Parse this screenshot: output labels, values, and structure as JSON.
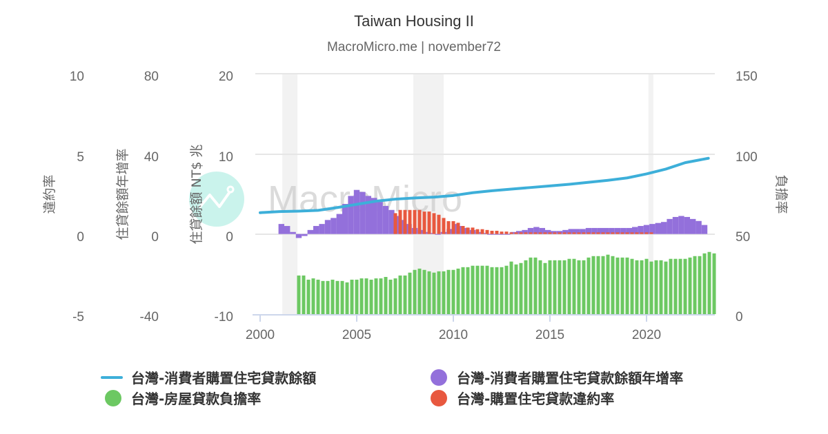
{
  "header": {
    "title": "Taiwan Housing II",
    "subtitle": "MacroMicro.me | november72"
  },
  "watermark": "MacroMicro",
  "axes": {
    "default_rate": {
      "title": "違約率",
      "ticks": [
        "10",
        "5",
        "0",
        "-5"
      ],
      "range": [
        -5,
        10
      ]
    },
    "growth": {
      "title": "住貸餘額年增率",
      "ticks": [
        "80",
        "40",
        "0",
        "-40"
      ],
      "range": [
        -40,
        80
      ]
    },
    "balance": {
      "title": "住貸餘額 NT$ 兆",
      "ticks": [
        "20",
        "10",
        "0",
        "-10"
      ],
      "range": [
        -10,
        20
      ]
    },
    "burden": {
      "title": "負擔率",
      "ticks": [
        "150",
        "100",
        "50",
        "0"
      ],
      "range": [
        0,
        150
      ]
    },
    "x": {
      "ticks": [
        "2000",
        "2005",
        "2010",
        "2015",
        "2020"
      ]
    }
  },
  "legend": [
    {
      "label": "台灣-消費者購置住宅貸款餘額",
      "color": "#3dafd9",
      "symbol": "line"
    },
    {
      "label": "台灣-消費者購置住宅貸款餘額年增率",
      "color": "#9370db",
      "symbol": "dot"
    },
    {
      "label": "台灣-房屋貸款負擔率",
      "color": "#6cc862",
      "symbol": "dot"
    },
    {
      "label": "台灣-購置住宅貸款違約率",
      "color": "#e8583f",
      "symbol": "dot"
    }
  ],
  "colors": {
    "balance": "#3dafd9",
    "growth": "#9370db",
    "burden": "#6cc862",
    "default": "#e8583f",
    "recession": "#f2f2f2",
    "grid": "#e6e6e6"
  },
  "chart_data": {
    "type": "bar",
    "title": "Taiwan Housing II",
    "subtitle": "MacroMicro.me | november72",
    "xlabel": "",
    "xlim": [
      2000,
      2023.5
    ],
    "x_ticks": [
      2000,
      2005,
      2010,
      2015,
      2020
    ],
    "grid": true,
    "legend_position": "bottom",
    "recession_bands": [
      [
        2001.15,
        2001.93
      ],
      [
        2007.93,
        2009.5
      ],
      [
        2020.1,
        2020.35
      ]
    ],
    "series": [
      {
        "name": "台灣-消費者購置住宅貸款餘額",
        "type": "line",
        "axis": "住貸餘額 NT$ 兆",
        "ylim": [
          -10,
          20
        ],
        "x": [
          2000.0,
          2001.0,
          2002.0,
          2003.0,
          2004.0,
          2005.0,
          2006.0,
          2007.0,
          2008.0,
          2009.0,
          2010.0,
          2011.0,
          2012.0,
          2013.0,
          2014.0,
          2015.0,
          2016.0,
          2017.0,
          2018.0,
          2019.0,
          2020.0,
          2021.0,
          2022.0,
          2023.2
        ],
        "values": [
          2.66,
          2.8,
          2.85,
          2.95,
          3.3,
          3.7,
          4.1,
          4.35,
          4.5,
          4.6,
          4.8,
          5.15,
          5.4,
          5.6,
          5.8,
          6.0,
          6.2,
          6.45,
          6.7,
          7.0,
          7.5,
          8.1,
          8.9,
          9.45
        ]
      },
      {
        "name": "台灣-消費者購置住宅貸款餘額年增率",
        "type": "bar",
        "axis": "住貸餘額年增率",
        "ylim": [
          -40,
          80
        ],
        "x": [
          2001.1,
          2001.4,
          2001.7,
          2002.0,
          2002.3,
          2002.6,
          2002.9,
          2003.2,
          2003.5,
          2003.8,
          2004.1,
          2004.4,
          2004.7,
          2005.0,
          2005.3,
          2005.6,
          2005.9,
          2006.2,
          2006.5,
          2006.8,
          2007.1,
          2007.4,
          2007.7,
          2008.0,
          2008.3,
          2008.6,
          2008.9,
          2009.2,
          2009.5,
          2009.8,
          2010.1,
          2010.4,
          2010.7,
          2011.0,
          2011.3,
          2011.6,
          2011.9,
          2012.2,
          2012.5,
          2012.8,
          2013.1,
          2013.4,
          2013.7,
          2014.0,
          2014.3,
          2014.6,
          2014.9,
          2015.2,
          2015.5,
          2015.8,
          2016.1,
          2016.4,
          2016.7,
          2017.0,
          2017.3,
          2017.6,
          2017.9,
          2018.2,
          2018.5,
          2018.8,
          2019.1,
          2019.4,
          2019.7,
          2020.0,
          2020.3,
          2020.6,
          2020.9,
          2021.2,
          2021.5,
          2021.8,
          2022.1,
          2022.4,
          2022.7,
          2023.0
        ],
        "values": [
          5,
          4,
          1,
          -2,
          -1,
          2,
          4,
          5,
          7,
          8,
          10,
          15,
          19,
          22,
          21,
          19,
          18,
          16,
          14,
          12,
          9,
          7,
          5,
          3,
          2,
          1,
          0.5,
          0,
          1,
          2.5,
          5,
          4,
          3,
          2,
          1,
          0.5,
          0,
          0,
          0,
          0,
          1,
          1.5,
          2,
          3,
          3.5,
          3,
          2,
          1.5,
          1.5,
          2,
          2.5,
          2.5,
          2.5,
          3,
          3,
          3,
          3,
          3,
          3,
          3,
          3,
          3.5,
          4,
          4.5,
          5,
          5.5,
          6,
          7.5,
          8.5,
          9,
          8.5,
          7.5,
          6.5,
          4.5
        ]
      },
      {
        "name": "台灣-房屋貸款負擔率",
        "type": "bar",
        "axis": "負擔率",
        "ylim": [
          0,
          150
        ],
        "x_start": 2002.0,
        "x_step": 0.25,
        "values": [
          24.1,
          24.1,
          21.5,
          22.3,
          21.5,
          20.7,
          20.7,
          21.5,
          20.7,
          20.7,
          19.8,
          21.5,
          21.5,
          22.3,
          22.3,
          21.5,
          22.3,
          22.3,
          23.2,
          21.5,
          22.3,
          24.1,
          24.1,
          25.9,
          27.6,
          28.4,
          27.6,
          26.7,
          25.9,
          26.7,
          26.7,
          27.6,
          27.6,
          28.4,
          29.3,
          29.3,
          30.2,
          30.2,
          30.2,
          30.2,
          29.3,
          29.3,
          29.3,
          30.2,
          32.8,
          31.0,
          31.9,
          33.6,
          35.3,
          35.3,
          33.6,
          31.9,
          33.6,
          33.6,
          33.6,
          33.6,
          34.5,
          34.5,
          33.6,
          33.6,
          35.3,
          36.2,
          36.2,
          36.2,
          37.1,
          36.2,
          35.3,
          35.3,
          35.3,
          34.5,
          33.6,
          33.6,
          34.5,
          32.8,
          33.6,
          33.6,
          32.8,
          34.5,
          34.5,
          34.5,
          34.5,
          35.3,
          36.2,
          36.2,
          37.9,
          38.8,
          37.9
        ]
      },
      {
        "name": "台灣-購置住宅貸款違約率",
        "type": "bar",
        "axis": "違約率",
        "ylim": [
          -5,
          10
        ],
        "x_start": 2007.0,
        "x_step": 0.25,
        "values": [
          1.3,
          1.5,
          1.5,
          1.5,
          1.5,
          1.5,
          1.4,
          1.4,
          1.3,
          1.2,
          1.0,
          0.8,
          0.8,
          0.7,
          0.5,
          0.4,
          0.4,
          0.3,
          0.3,
          0.25,
          0.2,
          0.2,
          0.15,
          0.15,
          0.1,
          0.1,
          0.1,
          0.1,
          0.1,
          0.1,
          0.1,
          0.1,
          0.1,
          0.1,
          0.1,
          0.1,
          0.1,
          0.1,
          0.1,
          0.1,
          0.1,
          0.1,
          0.1,
          0.1,
          0.1,
          0.1,
          0.1,
          0.1,
          0.1,
          0.1,
          0.1,
          0.1,
          0.1,
          0.1
        ]
      }
    ]
  }
}
